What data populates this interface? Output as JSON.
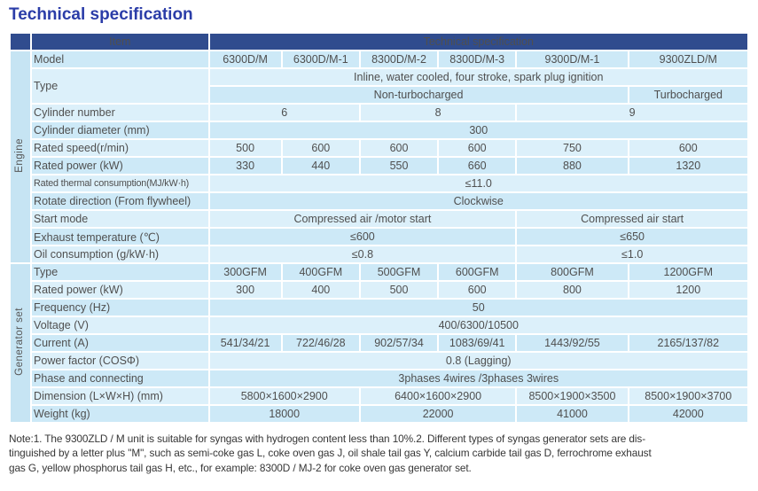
{
  "title": "Technical specification",
  "table": {
    "header": {
      "item_label": "Item",
      "spec_label": "Technical specification"
    },
    "sections": [
      {
        "label": "Engine",
        "rows": [
          {
            "item": "Model",
            "cells": [
              {
                "text": "6300D/M",
                "span": 1
              },
              {
                "text": "6300D/M-1",
                "span": 1
              },
              {
                "text": "8300D/M-2",
                "span": 1
              },
              {
                "text": "8300D/M-3",
                "span": 1
              },
              {
                "text": "9300D/M-1",
                "span": 1
              },
              {
                "text": "9300ZLD/M",
                "span": 1
              }
            ]
          },
          {
            "item": "Type",
            "itemspan": 2,
            "cells": [
              {
                "text": "Inline, water cooled, four stroke, spark plug ignition",
                "span": 6
              }
            ]
          },
          {
            "cells": [
              {
                "text": "Non-turbocharged",
                "span": 5
              },
              {
                "text": "Turbocharged",
                "span": 1
              }
            ]
          },
          {
            "item": "Cylinder number",
            "cells": [
              {
                "text": "6",
                "span": 2
              },
              {
                "text": "8",
                "span": 2
              },
              {
                "text": "9",
                "span": 2
              }
            ]
          },
          {
            "item": "Cylinder diameter (mm)",
            "cells": [
              {
                "text": "300",
                "span": 6
              }
            ]
          },
          {
            "item": "Rated speed(r/min)",
            "cells": [
              {
                "text": "500",
                "span": 1
              },
              {
                "text": "600",
                "span": 1
              },
              {
                "text": "600",
                "span": 1
              },
              {
                "text": "600",
                "span": 1
              },
              {
                "text": "750",
                "span": 1
              },
              {
                "text": "600",
                "span": 1
              }
            ]
          },
          {
            "item": "Rated power (kW)",
            "cells": [
              {
                "text": "330",
                "span": 1
              },
              {
                "text": "440",
                "span": 1
              },
              {
                "text": "550",
                "span": 1
              },
              {
                "text": "660",
                "span": 1
              },
              {
                "text": "880",
                "span": 1
              },
              {
                "text": "1320",
                "span": 1
              }
            ]
          },
          {
            "item": "Rated thermal consumption(MJ/kW·h)",
            "cells": [
              {
                "text": "≤11.0",
                "span": 6
              }
            ]
          },
          {
            "item": "Rotate direction (From flywheel)",
            "cells": [
              {
                "text": "Clockwise",
                "span": 6
              }
            ]
          },
          {
            "item": "Start mode",
            "cells": [
              {
                "text": "Compressed air /motor start",
                "span": 4
              },
              {
                "text": "Compressed air start",
                "span": 2
              }
            ]
          },
          {
            "item": "Exhaust temperature (℃)",
            "cells": [
              {
                "text": "≤600",
                "span": 4
              },
              {
                "text": "≤650",
                "span": 2
              }
            ]
          },
          {
            "item": "Oil consumption (g/kW·h)",
            "cells": [
              {
                "text": "≤0.8",
                "span": 4
              },
              {
                "text": "≤1.0",
                "span": 2
              }
            ]
          }
        ]
      },
      {
        "label": "Generator set",
        "rows": [
          {
            "item": "Type",
            "cells": [
              {
                "text": "300GFM",
                "span": 1
              },
              {
                "text": "400GFM",
                "span": 1
              },
              {
                "text": "500GFM",
                "span": 1
              },
              {
                "text": "600GFM",
                "span": 1
              },
              {
                "text": "800GFM",
                "span": 1
              },
              {
                "text": "1200GFM",
                "span": 1
              }
            ]
          },
          {
            "item": "Rated power (kW)",
            "cells": [
              {
                "text": "300",
                "span": 1
              },
              {
                "text": "400",
                "span": 1
              },
              {
                "text": "500",
                "span": 1
              },
              {
                "text": "600",
                "span": 1
              },
              {
                "text": "800",
                "span": 1
              },
              {
                "text": "1200",
                "span": 1
              }
            ]
          },
          {
            "item": "Frequency (Hz)",
            "cells": [
              {
                "text": "50",
                "span": 6
              }
            ]
          },
          {
            "item": "Voltage (V)",
            "cells": [
              {
                "text": "400/6300/10500",
                "span": 6
              }
            ]
          },
          {
            "item": "Current (A)",
            "cells": [
              {
                "text": "541/34/21",
                "span": 1
              },
              {
                "text": "722/46/28",
                "span": 1
              },
              {
                "text": "902/57/34",
                "span": 1
              },
              {
                "text": "1083/69/41",
                "span": 1
              },
              {
                "text": "1443/92/55",
                "span": 1
              },
              {
                "text": "2165/137/82",
                "span": 1
              }
            ]
          },
          {
            "item": "Power factor (COSΦ)",
            "cells": [
              {
                "text": "0.8 (Lagging)",
                "span": 6
              }
            ]
          },
          {
            "item": "Phase and connecting",
            "cells": [
              {
                "text": "3phases 4wires /3phases 3wires",
                "span": 6
              }
            ]
          },
          {
            "item": "Dimension (L×W×H) (mm)",
            "cells": [
              {
                "text": "5800×1600×2900",
                "span": 2
              },
              {
                "text": "6400×1600×2900",
                "span": 2
              },
              {
                "text": "8500×1900×3500",
                "span": 1
              },
              {
                "text": "8500×1900×3700",
                "span": 1
              }
            ]
          },
          {
            "item": "Weight (kg)",
            "cells": [
              {
                "text": "18000",
                "span": 2
              },
              {
                "text": "22000",
                "span": 2
              },
              {
                "text": "41000",
                "span": 1
              },
              {
                "text": "42000",
                "span": 1
              }
            ]
          }
        ]
      }
    ]
  },
  "note": {
    "lines": [
      "Note:1. The 9300ZLD / M unit is suitable for syngas with hydrogen content less than 10%.2. Different types of syngas generator sets are dis-",
      "tinguished by a letter plus \"M\", such as semi-coke gas L, coke oven gas J, oil shale tail gas Y, calcium carbide tail gas D, ferrochrome exhaust",
      "gas G, yellow phosphorus tail gas H, etc., for example: 8300D / MJ-2 for coke oven gas generator set."
    ]
  },
  "colors": {
    "header_bg": "#304c8e",
    "header_text": "#dde7f2",
    "row_a": "#cde9f7",
    "row_b": "#dcf0fa",
    "strip_bg": "#c6e4f3",
    "title_color": "#2b3da8",
    "cell_text": "#4f4f4f",
    "note_text": "#363636"
  }
}
